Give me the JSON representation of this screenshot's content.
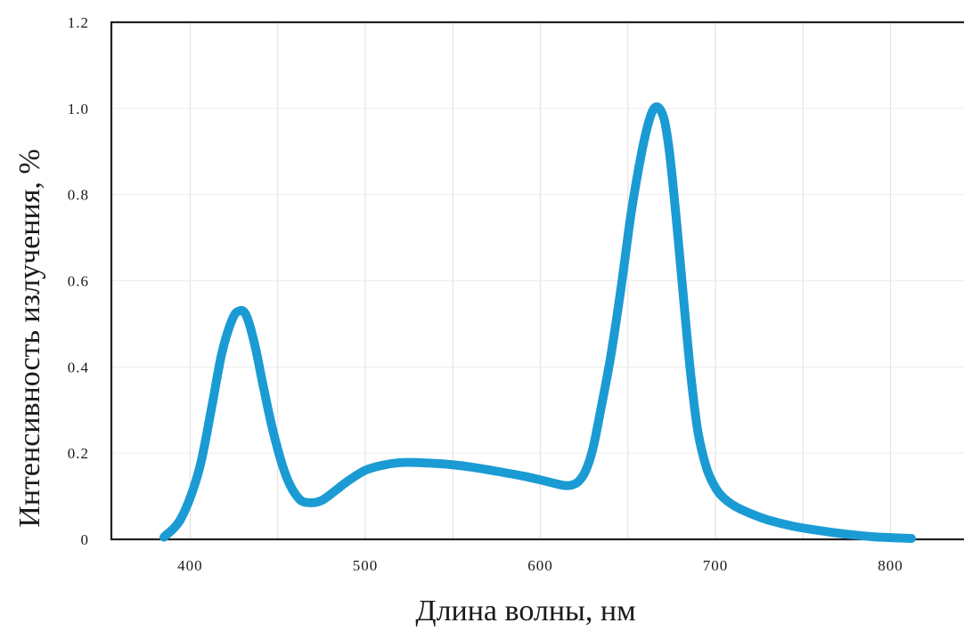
{
  "chart_data": {
    "type": "line",
    "title": "",
    "xlabel": "Длина волны, нм",
    "ylabel": "Интенсивность излучения, %",
    "xlim": [
      355,
      842
    ],
    "ylim": [
      0,
      1.2
    ],
    "grid": true,
    "x_ticks": [
      400,
      500,
      600,
      700,
      800
    ],
    "x_tick_labels": [
      "400",
      "500",
      "600",
      "700",
      "800"
    ],
    "y_ticks": [
      0,
      0.2,
      0.4,
      0.6,
      0.8,
      1.0,
      1.2
    ],
    "y_tick_labels": [
      "0",
      "0.2",
      "0.4",
      "0.6",
      "0.8",
      "1.0",
      "1.2"
    ],
    "series": [
      {
        "color": "#1b9bd4",
        "x": [
          385,
          395,
          405,
          412,
          418,
          424,
          428,
          432,
          437,
          442,
          448,
          455,
          462,
          468,
          475,
          482,
          490,
          500,
          510,
          520,
          530,
          545,
          560,
          575,
          590,
          600,
          608,
          614,
          618,
          622,
          626,
          630,
          634,
          640,
          646,
          652,
          658,
          662,
          665,
          668,
          671,
          674,
          678,
          682,
          686,
          690,
          695,
          700,
          705,
          712,
          720,
          730,
          745,
          760,
          775,
          790,
          800,
          812
        ],
        "y": [
          0.005,
          0.05,
          0.16,
          0.3,
          0.43,
          0.51,
          0.53,
          0.52,
          0.45,
          0.35,
          0.24,
          0.145,
          0.095,
          0.085,
          0.09,
          0.11,
          0.135,
          0.16,
          0.172,
          0.178,
          0.178,
          0.175,
          0.168,
          0.158,
          0.147,
          0.138,
          0.13,
          0.125,
          0.126,
          0.135,
          0.16,
          0.21,
          0.29,
          0.42,
          0.58,
          0.76,
          0.9,
          0.97,
          1.0,
          1.0,
          0.97,
          0.89,
          0.73,
          0.55,
          0.38,
          0.25,
          0.165,
          0.12,
          0.095,
          0.075,
          0.06,
          0.045,
          0.03,
          0.02,
          0.012,
          0.006,
          0.004,
          0.002
        ]
      }
    ]
  }
}
